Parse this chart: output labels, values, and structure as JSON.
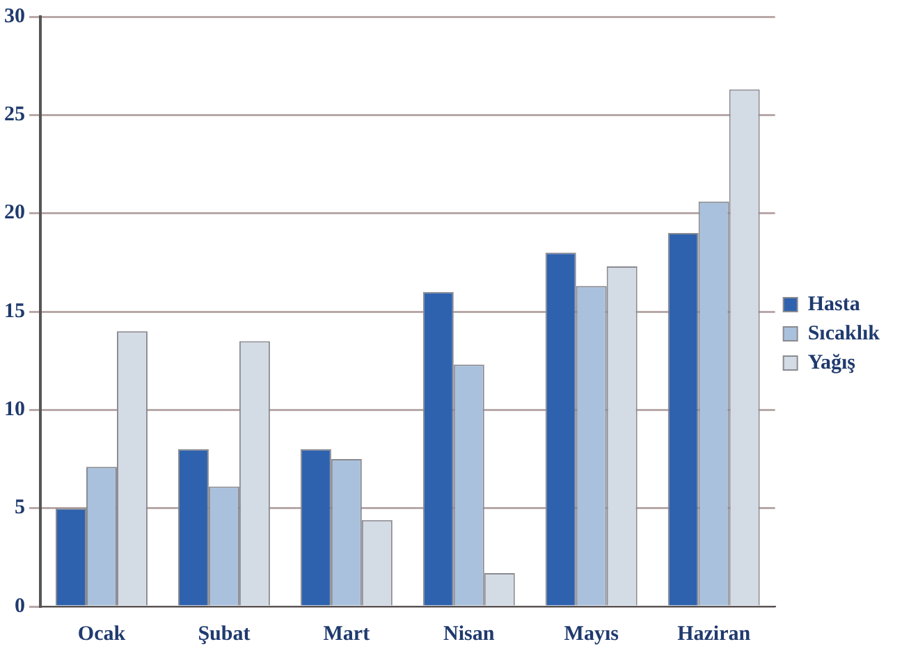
{
  "chart_data": {
    "type": "bar",
    "categories": [
      "Ocak",
      "Şubat",
      "Mart",
      "Nisan",
      "Mayıs",
      "Haziran"
    ],
    "series": [
      {
        "name": "Hasta",
        "color": "#2e62ae",
        "values": [
          5,
          8,
          8,
          16,
          18,
          19
        ]
      },
      {
        "name": "Sıcaklık",
        "color": "#a9c1dc",
        "values": [
          7.1,
          6.1,
          7.5,
          12.3,
          16.3,
          20.6
        ]
      },
      {
        "name": "Yağış",
        "color": "#d3dbe5",
        "values": [
          14,
          13.5,
          4.4,
          1.7,
          17.3,
          26.3
        ]
      }
    ],
    "ylim": [
      0,
      30
    ],
    "yticks": [
      0,
      5,
      10,
      15,
      20,
      25,
      30
    ],
    "grid": "y",
    "legend": "right"
  }
}
